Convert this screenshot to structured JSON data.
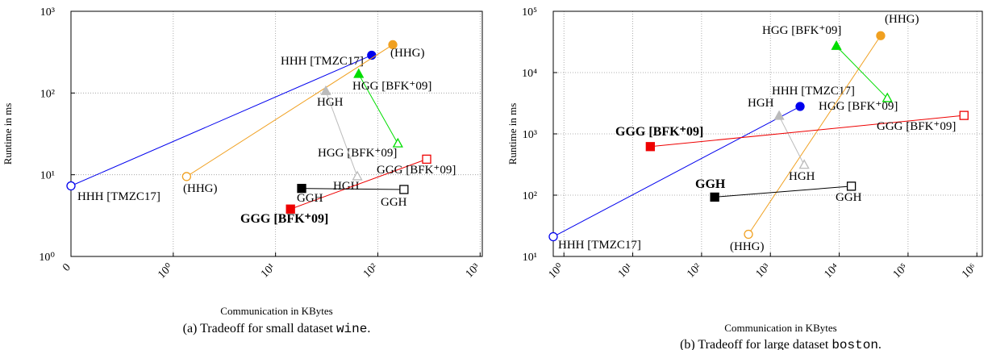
{
  "chart_data": [
    {
      "type": "line",
      "log_x": true,
      "log_y": true,
      "grid": true,
      "xlabel": "Communication in KBytes",
      "ylabel": "Runtime in ms",
      "caption": [
        "(a) Tradeoff for small dataset ",
        "wine",
        "."
      ],
      "xlim": [
        0.1,
        1050
      ],
      "ylim": [
        1,
        1000
      ],
      "xticks": [
        {
          "value": 0.1,
          "label": "0"
        },
        {
          "value": 1,
          "label": "10⁰"
        },
        {
          "value": 10,
          "label": "10¹"
        },
        {
          "value": 100,
          "label": "10²"
        },
        {
          "value": 1000,
          "label": "10³"
        }
      ],
      "yticks": [
        {
          "value": 1,
          "label": "10⁰"
        },
        {
          "value": 10,
          "label": "10¹"
        },
        {
          "value": 100,
          "label": "10²"
        },
        {
          "value": 1000,
          "label": "10³"
        }
      ],
      "series": [
        {
          "color": "#0000ee",
          "marker": "circle",
          "labels": [
            "HHH [TMZC17]",
            "HHH [TMZC17]"
          ],
          "x": [
            0.1,
            87
          ],
          "y": [
            7.3,
            290
          ]
        },
        {
          "color": "#f0a020",
          "marker": "circle",
          "labels": [
            "(HHG)",
            "(HHG)"
          ],
          "x": [
            1.35,
            140
          ],
          "y": [
            9.5,
            390
          ]
        },
        {
          "color": "#00dd00",
          "marker": "triangle",
          "labels": [
            "HGG [BFK⁺09]",
            "HGG [BFK⁺09]"
          ],
          "x": [
            157,
            65
          ],
          "y": [
            24,
            170
          ]
        },
        {
          "color": "#bbbbbb",
          "marker": "triangle",
          "labels": [
            "HGH",
            "HGH"
          ],
          "x": [
            63,
            31
          ],
          "y": [
            9.5,
            105
          ]
        },
        {
          "color": "#ee0000",
          "marker": "square",
          "labels": [
            "GGG [BFK⁺09]",
            "GGG [BFK⁺09]"
          ],
          "bold": [
            false,
            true
          ],
          "x": [
            300,
            14
          ],
          "y": [
            15.5,
            3.8
          ]
        },
        {
          "color": "#000000",
          "marker": "square",
          "labels": [
            "GGH",
            "GGH"
          ],
          "x": [
            180,
            18
          ],
          "y": [
            6.6,
            6.8
          ]
        }
      ]
    },
    {
      "type": "line",
      "log_x": true,
      "log_y": true,
      "grid": true,
      "xlabel": "Communication in KBytes",
      "ylabel": "Runtime in ms",
      "caption": [
        "(b) Tradeoff for large dataset ",
        "boston",
        "."
      ],
      "xlim": [
        0.7,
        1200000
      ],
      "ylim": [
        10,
        100000
      ],
      "xticks": [
        {
          "value": 1,
          "label": "10⁰"
        },
        {
          "value": 10,
          "label": "10¹"
        },
        {
          "value": 100,
          "label": "10²"
        },
        {
          "value": 1000,
          "label": "10³"
        },
        {
          "value": 10000,
          "label": "10⁴"
        },
        {
          "value": 100000,
          "label": "10⁵"
        },
        {
          "value": 1000000,
          "label": "10⁶"
        }
      ],
      "yticks": [
        {
          "value": 10,
          "label": "10¹"
        },
        {
          "value": 100,
          "label": "10²"
        },
        {
          "value": 1000,
          "label": "10³"
        },
        {
          "value": 10000,
          "label": "10⁴"
        },
        {
          "value": 100000,
          "label": "10⁵"
        }
      ],
      "series": [
        {
          "color": "#0000ee",
          "marker": "circle",
          "labels": [
            "HHH [TMZC17]",
            "HHH [TMZC17]"
          ],
          "x": [
            0.7,
            2700
          ],
          "y": [
            21,
            2800
          ]
        },
        {
          "color": "#f0a020",
          "marker": "circle",
          "labels": [
            "(HHG)",
            "(HHG)"
          ],
          "x": [
            480,
            40000
          ],
          "y": [
            23,
            40000
          ]
        },
        {
          "color": "#00dd00",
          "marker": "triangle",
          "labels": [
            "HGG [BFK⁺09]",
            "HGG [BFK⁺09]"
          ],
          "x": [
            50000,
            9100
          ],
          "y": [
            3800,
            27000
          ]
        },
        {
          "color": "#bbbbbb",
          "marker": "triangle",
          "labels": [
            "HGH",
            "HGH"
          ],
          "x": [
            3100,
            1340
          ],
          "y": [
            310,
            1950
          ]
        },
        {
          "color": "#ee0000",
          "marker": "square",
          "labels": [
            "GGG [BFK⁺09]",
            "GGG [BFK⁺09]"
          ],
          "bold": [
            false,
            true
          ],
          "x": [
            650000,
            18
          ],
          "y": [
            2000,
            620
          ]
        },
        {
          "color": "#000000",
          "marker": "square",
          "labels": [
            "GGH",
            "GGH"
          ],
          "bold": [
            false,
            true
          ],
          "x": [
            15000,
            155
          ],
          "y": [
            140,
            93
          ]
        }
      ]
    }
  ]
}
